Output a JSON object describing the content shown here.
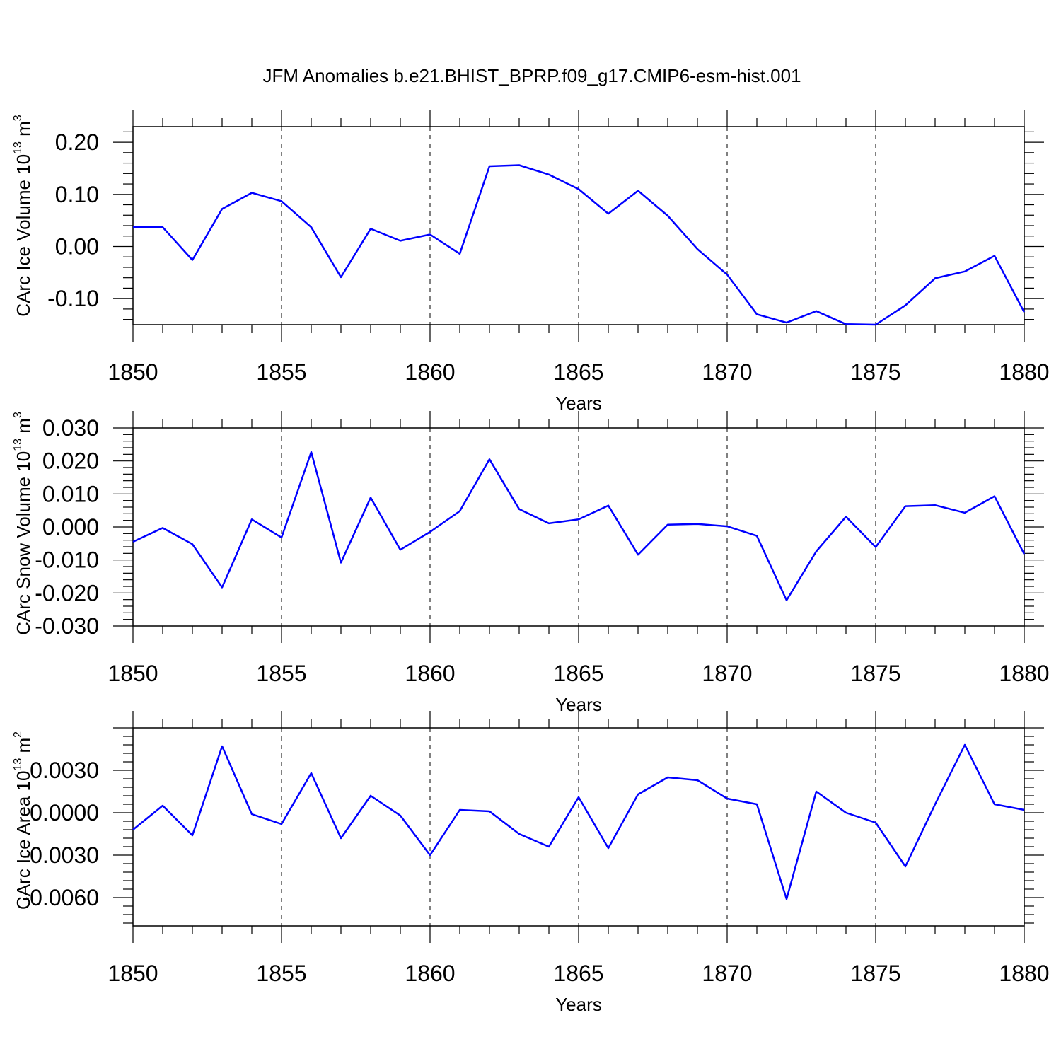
{
  "title": "JFM Anomalies b.e21.BHIST_BPRP.f09_g17.CMIP6-esm-hist.001",
  "colors": {
    "series": "#0000ff",
    "axes": "#000000",
    "background": "#ffffff"
  },
  "chart_data": [
    {
      "type": "line",
      "ylabel_main": "CArc Ice Volume 10",
      "ylabel_sup": "13",
      "ylabel_unit": " m",
      "ylabel_unit_sup": "3",
      "xlabel": "Years",
      "xlim": [
        1850,
        1880
      ],
      "ylim": [
        -0.15,
        0.23
      ],
      "yticks": [
        0.2,
        0.1,
        0.0,
        -0.1
      ],
      "ytick_labels": [
        "0.20",
        "0.10",
        "0.00",
        "-0.10"
      ],
      "xticks": [
        1850,
        1855,
        1860,
        1865,
        1870,
        1875,
        1880
      ],
      "xtick_labels": [
        "1850",
        "1855",
        "1860",
        "1865",
        "1870",
        "1875",
        "1880"
      ],
      "grid": "dashed vertical at labeled x ticks",
      "series": [
        {
          "x": [
            1850,
            1851,
            1852,
            1853,
            1854,
            1855,
            1856,
            1857,
            1858,
            1859,
            1860,
            1861,
            1862,
            1863,
            1864,
            1865,
            1866,
            1867,
            1868,
            1869,
            1870,
            1871,
            1872,
            1873,
            1874,
            1875,
            1876,
            1877,
            1878,
            1879,
            1880
          ],
          "values": [
            0.037,
            0.037,
            -0.026,
            0.072,
            0.103,
            0.087,
            0.037,
            -0.059,
            0.034,
            0.011,
            0.023,
            -0.014,
            0.154,
            0.156,
            0.138,
            0.11,
            0.063,
            0.107,
            0.059,
            -0.005,
            -0.054,
            -0.13,
            -0.146,
            -0.124,
            -0.149,
            -0.15,
            -0.113,
            -0.061,
            -0.048,
            -0.018,
            -0.126
          ]
        }
      ]
    },
    {
      "type": "line",
      "ylabel_main": "CArc Snow Volume 10",
      "ylabel_sup": "13",
      "ylabel_unit": " m",
      "ylabel_unit_sup": "3",
      "xlabel": "Years",
      "xlim": [
        1850,
        1880
      ],
      "ylim": [
        -0.03,
        0.03
      ],
      "yticks": [
        0.03,
        0.02,
        0.01,
        0.0,
        -0.01,
        -0.02,
        -0.03
      ],
      "ytick_labels": [
        "0.030",
        "0.020",
        "0.010",
        "0.000",
        "-0.010",
        "-0.020",
        "-0.030"
      ],
      "xticks": [
        1850,
        1855,
        1860,
        1865,
        1870,
        1875,
        1880
      ],
      "xtick_labels": [
        "1850",
        "1855",
        "1860",
        "1865",
        "1870",
        "1875",
        "1880"
      ],
      "grid": "dashed vertical at labeled x ticks",
      "series": [
        {
          "x": [
            1850,
            1851,
            1852,
            1853,
            1854,
            1855,
            1856,
            1857,
            1858,
            1859,
            1860,
            1861,
            1862,
            1863,
            1864,
            1865,
            1866,
            1867,
            1868,
            1869,
            1870,
            1871,
            1872,
            1873,
            1874,
            1875,
            1876,
            1877,
            1878,
            1879,
            1880
          ],
          "values": [
            -0.0045,
            -0.0003,
            -0.0052,
            -0.0183,
            0.0023,
            -0.0032,
            0.0227,
            -0.0108,
            0.0089,
            -0.0069,
            -0.0015,
            0.0048,
            0.0205,
            0.0054,
            0.0011,
            0.0023,
            0.0065,
            -0.0084,
            0.0007,
            0.0009,
            0.0002,
            -0.0027,
            -0.0222,
            -0.0074,
            0.0031,
            -0.0061,
            0.0063,
            0.0066,
            0.0043,
            0.0093,
            -0.0082
          ]
        }
      ]
    },
    {
      "type": "line",
      "ylabel_main": "CArc Ice Area 10",
      "ylabel_sup": "13",
      "ylabel_unit": " m",
      "ylabel_unit_sup": "2",
      "xlabel": "Years",
      "xlim": [
        1850,
        1880
      ],
      "ylim": [
        -0.008,
        0.006
      ],
      "yticks": [
        0.003,
        0.0,
        -0.003,
        -0.006
      ],
      "ytick_labels": [
        "0.0030",
        "0.0000",
        "-0.0030",
        "-0.0060"
      ],
      "xticks": [
        1850,
        1855,
        1860,
        1865,
        1870,
        1875,
        1880
      ],
      "xtick_labels": [
        "1850",
        "1855",
        "1860",
        "1865",
        "1870",
        "1875",
        "1880"
      ],
      "grid": "dashed vertical at labeled x ticks",
      "series": [
        {
          "x": [
            1850,
            1851,
            1852,
            1853,
            1854,
            1855,
            1856,
            1857,
            1858,
            1859,
            1860,
            1861,
            1862,
            1863,
            1864,
            1865,
            1866,
            1867,
            1868,
            1869,
            1870,
            1871,
            1872,
            1873,
            1874,
            1875,
            1876,
            1877,
            1878,
            1879,
            1880
          ],
          "values": [
            -0.0012,
            0.0005,
            -0.0016,
            0.0047,
            -0.0001,
            -0.0008,
            0.0028,
            -0.0018,
            0.0012,
            -0.0002,
            -0.003,
            0.0002,
            0.0001,
            -0.0015,
            -0.0024,
            0.0011,
            -0.0025,
            0.0013,
            0.0025,
            0.0023,
            0.001,
            0.0006,
            -0.0061,
            0.0015,
            0.0,
            -0.0007,
            -0.0038,
            0.0006,
            0.0048,
            0.0006,
            0.0002
          ]
        }
      ]
    }
  ]
}
